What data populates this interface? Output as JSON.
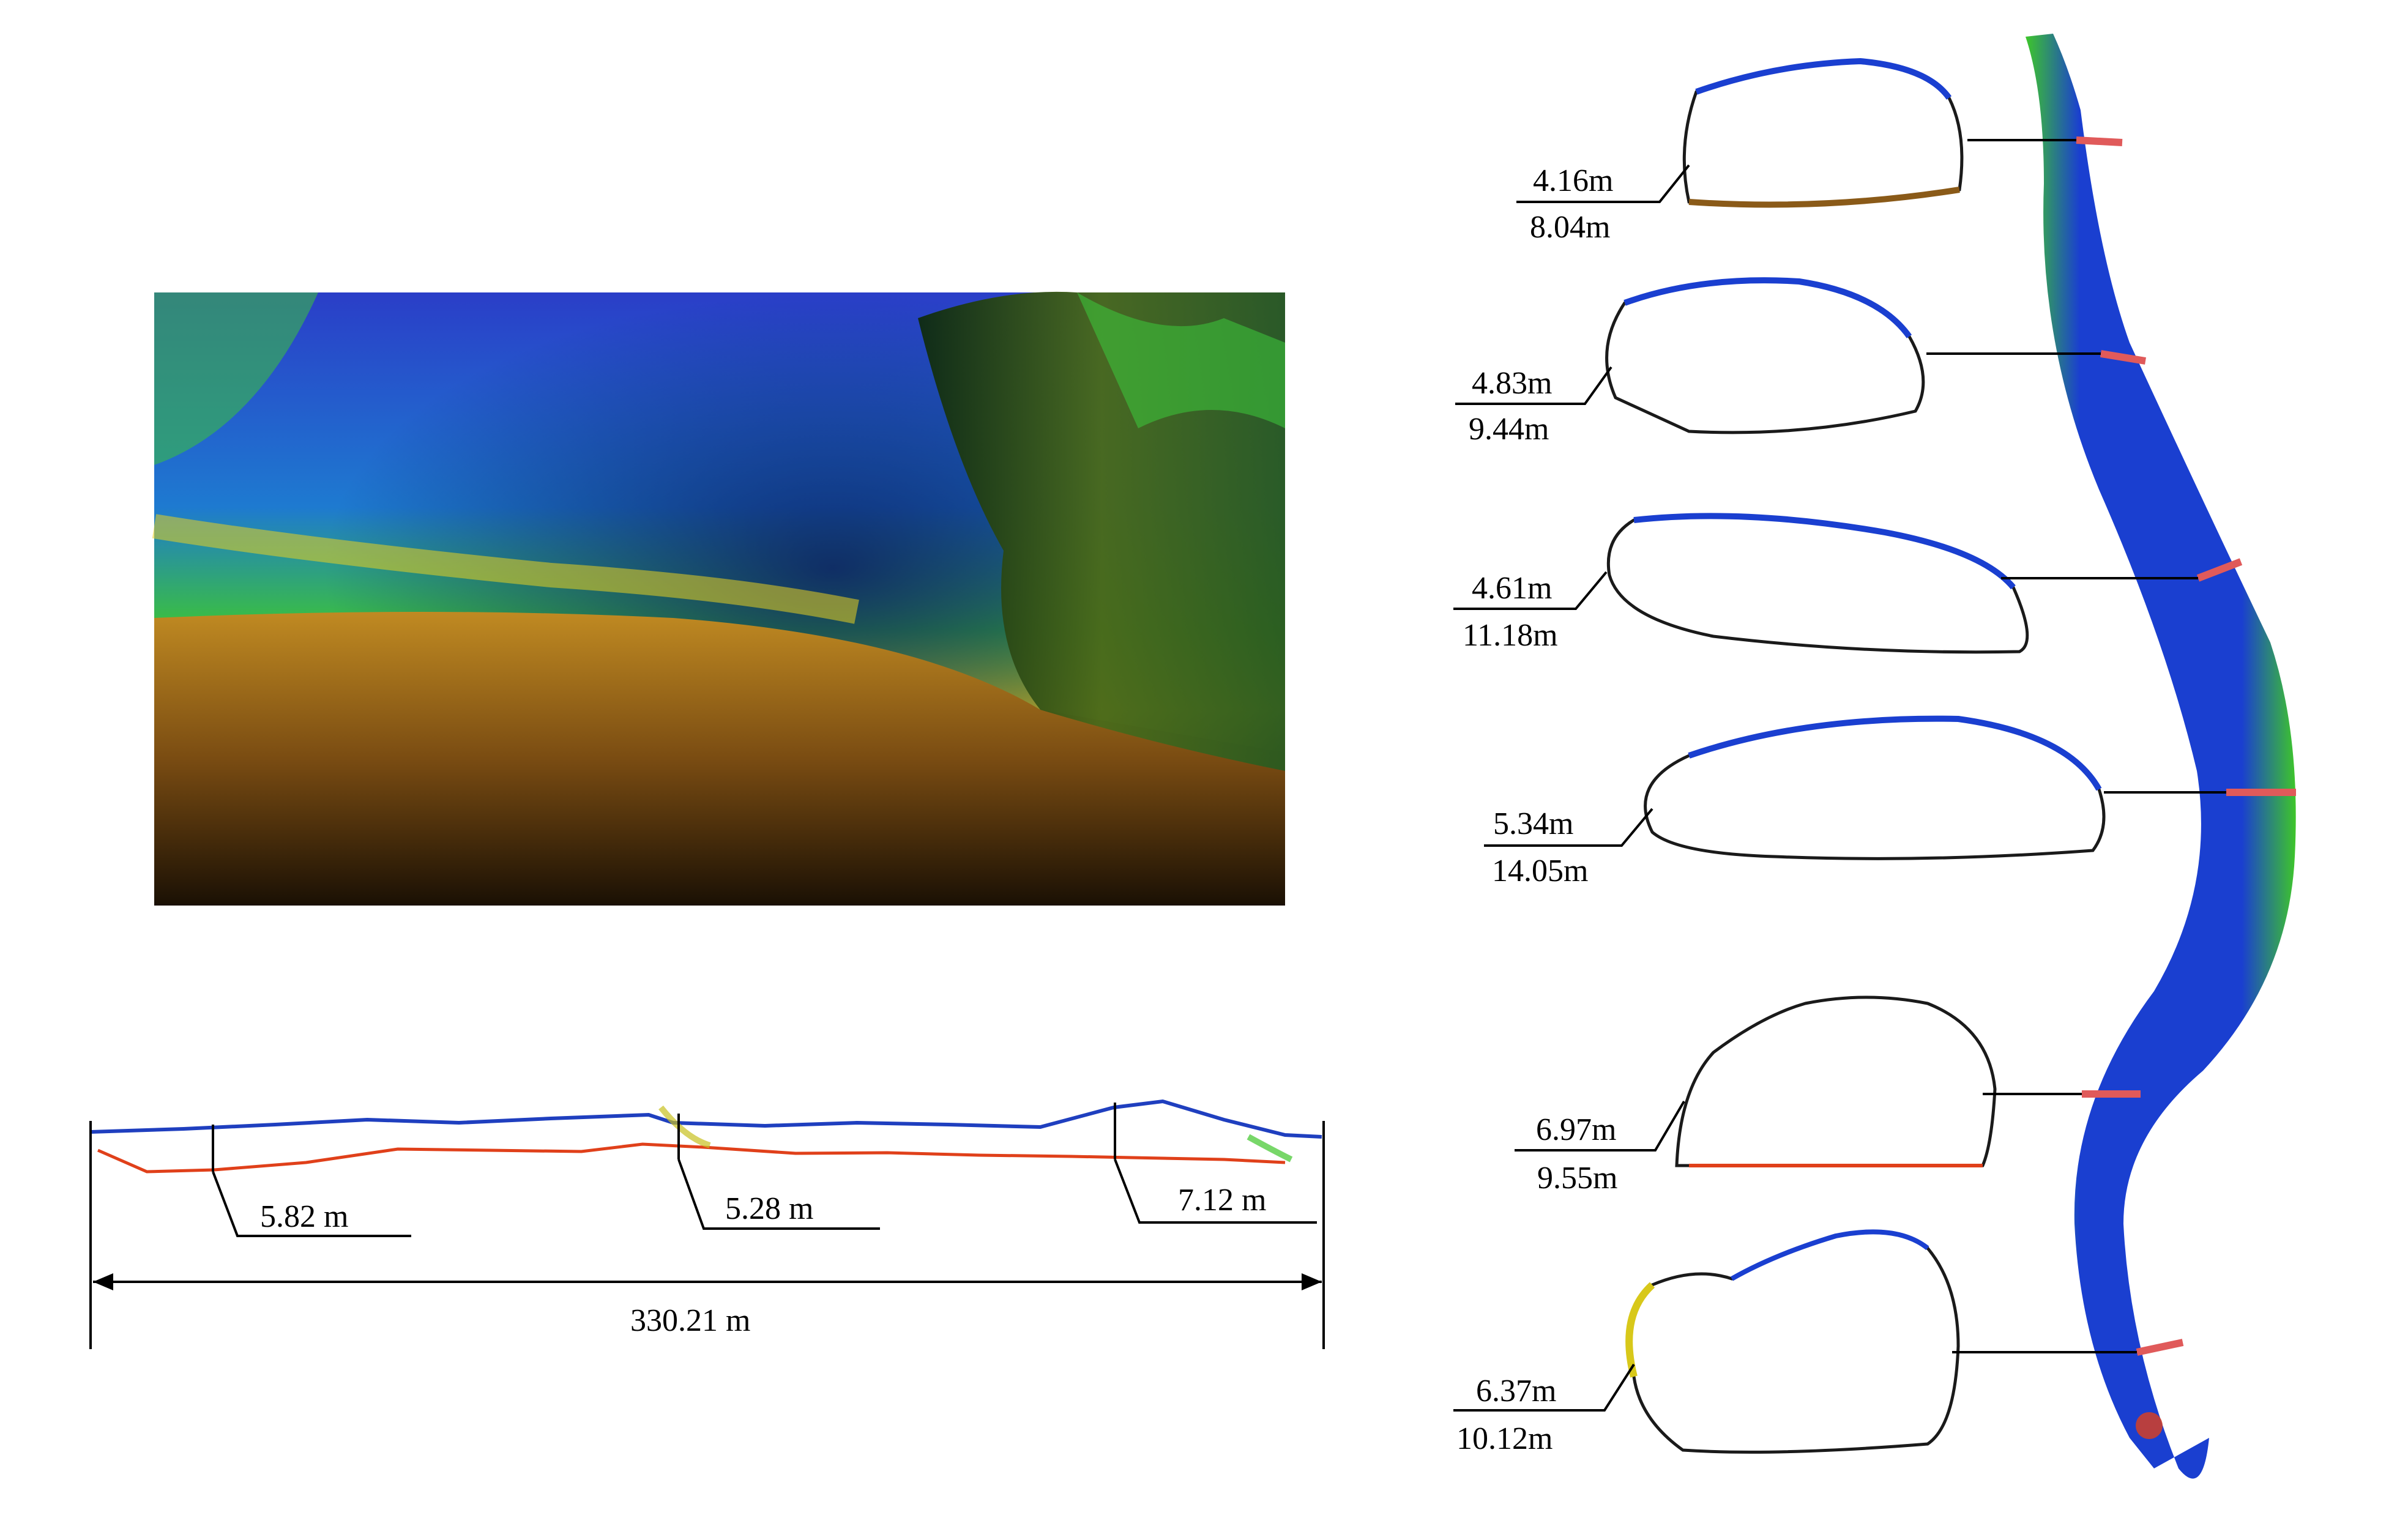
{
  "profile": {
    "depth_labels": [
      "5.82 m",
      "5.28 m",
      "7.12 m"
    ],
    "length_label": "330.21 m"
  },
  "sections": [
    {
      "height": "4.16m",
      "width": "8.04m"
    },
    {
      "height": "4.83m",
      "width": "9.44m"
    },
    {
      "height": "4.61m",
      "width": "11.18m"
    },
    {
      "height": "5.34m",
      "width": "14.05m"
    },
    {
      "height": "6.97m",
      "width": "9.55m"
    },
    {
      "height": "6.37m",
      "width": "10.12m"
    }
  ],
  "colors": {
    "roof_profile": "#1f3fbf",
    "floor_profile": "#e0401a",
    "section_marker": "#e05a5a",
    "tunnel_blue": "#1a3fd0",
    "tunnel_green": "#3ec62a"
  }
}
